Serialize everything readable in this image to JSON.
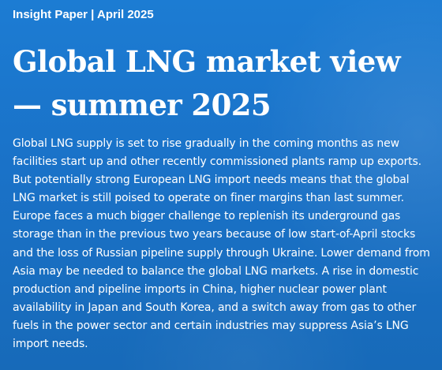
{
  "header": {
    "kicker": "Insight Paper | April 2025",
    "title": "Global LNG market view — summer 2025"
  },
  "article": {
    "body": "Global LNG supply is set to rise gradually in the coming months as new facilities start up and other recently commissioned plants ramp up exports. But potentially strong European LNG import needs means that the global LNG market is still poised to operate on finer margins than last summer. Europe faces a much bigger challenge to replenish its underground gas storage than in the previous two years because of low start-of-April stocks and the loss of Russian pipeline supply through Ukraine. Lower demand from Asia may be needed to balance the global LNG markets. A rise in domestic production and pipeline imports in China, higher nuclear power plant availability in Japan and South Korea, and a switch away from gas to other fuels in the power sector and certain industries may suppress Asia’s LNG import needs."
  },
  "colors": {
    "background": "#1a72c8",
    "text": "#ffffff"
  }
}
